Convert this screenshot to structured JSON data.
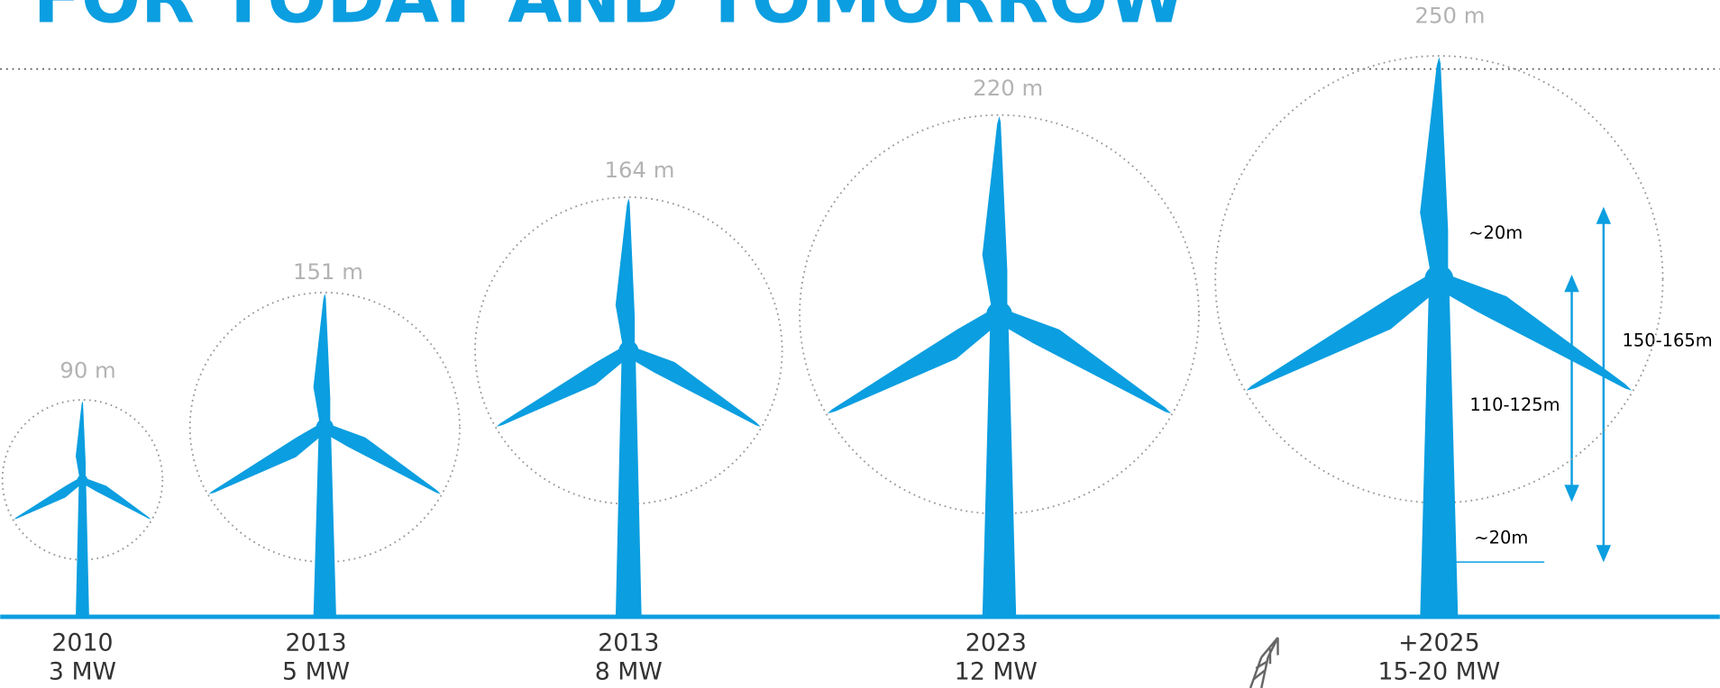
{
  "title": "FOR TODAY AND TOMORROW",
  "turbines": [
    {
      "height": "90 m",
      "year": "2010",
      "power": "3 MW"
    },
    {
      "height": "151 m",
      "year": "2013",
      "power": "5 MW"
    },
    {
      "height": "164 m",
      "year": "2013",
      "power": "8 MW"
    },
    {
      "height": "220 m",
      "year": "2023",
      "power": "12 MW"
    },
    {
      "height": "250 m",
      "year": "+2025",
      "power": "15-20 MW"
    }
  ],
  "annotations": {
    "blade_root": "~20m",
    "total_span": "150-165m",
    "rotor_span": "110-125m",
    "ground_clearance": "~20m"
  }
}
